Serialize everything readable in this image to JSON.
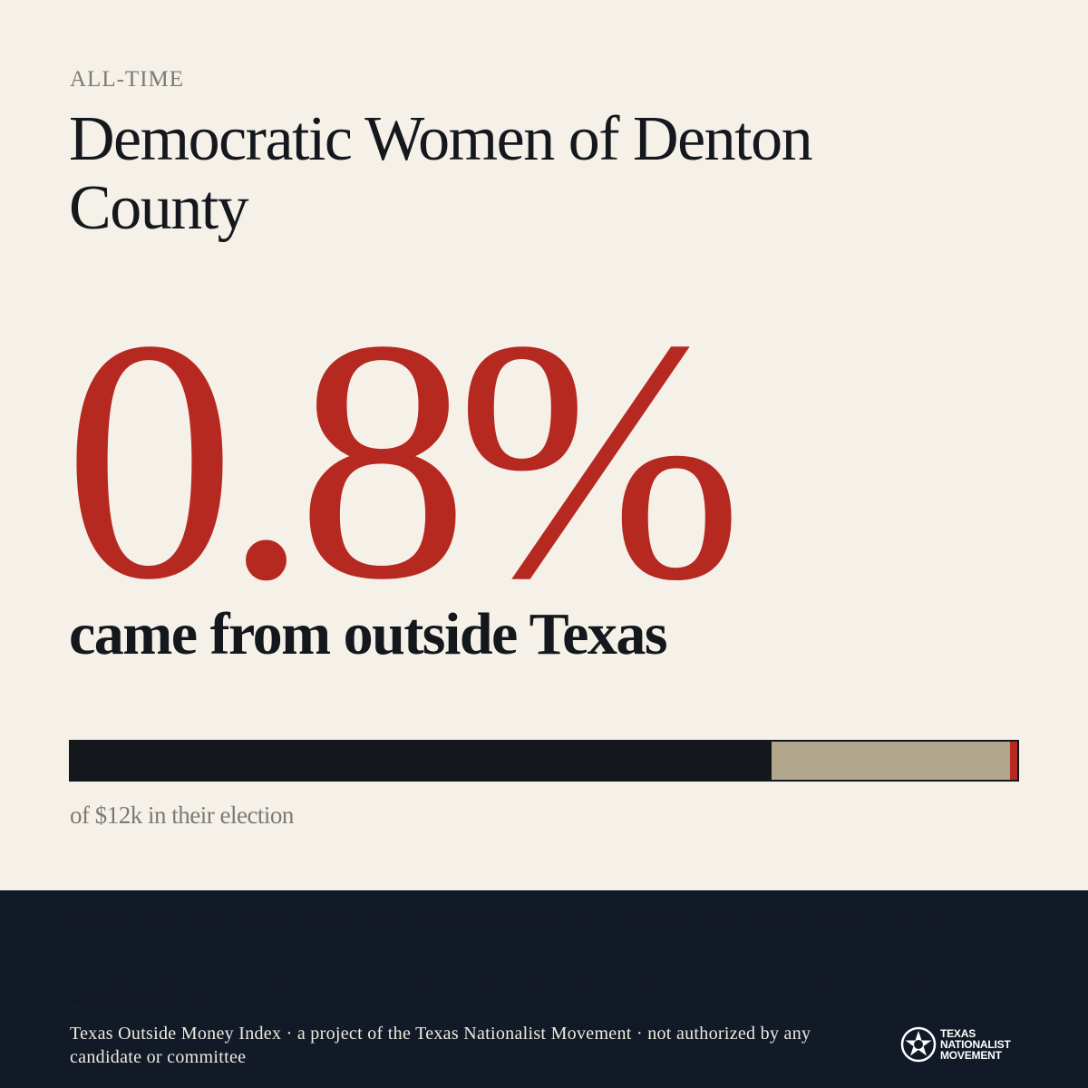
{
  "header": {
    "eyebrow": "ALL-TIME",
    "title": "Democratic Women of Denton County"
  },
  "stat": {
    "value": "0.8%",
    "label": "came from outside Texas"
  },
  "bar": {
    "segments": [
      {
        "name": "inside",
        "fraction": 0.74,
        "color": "#14181d"
      },
      {
        "name": "outside-other",
        "fraction": 0.252,
        "color": "#b2a68c"
      },
      {
        "name": "outside-texas",
        "fraction": 0.008,
        "color": "#b52921"
      }
    ]
  },
  "caption": "of $12k in their election",
  "footer": {
    "note1": "Reported-address share of public campaign-finance filings. Not verified residency; not a claim about who wins or about any person's conduct.",
    "note2": "From public Texas Ethics Commission and Federal Election Commission filings, through 2026-07-15. Verify or dispute the record at whoboughttexas.com.",
    "credit": "Texas Outside Money Index · a project of the Texas Nationalist Movement · not authorized by any candidate or committee",
    "logo": {
      "line1": "TEXAS",
      "line2": "NATIONALIST",
      "line3": "MOVEMENT",
      "icon": "star-seal-icon"
    }
  },
  "colors": {
    "background": "#f5f0e8",
    "accent": "#b52921",
    "ink": "#14181d",
    "footer": "#111a26"
  }
}
